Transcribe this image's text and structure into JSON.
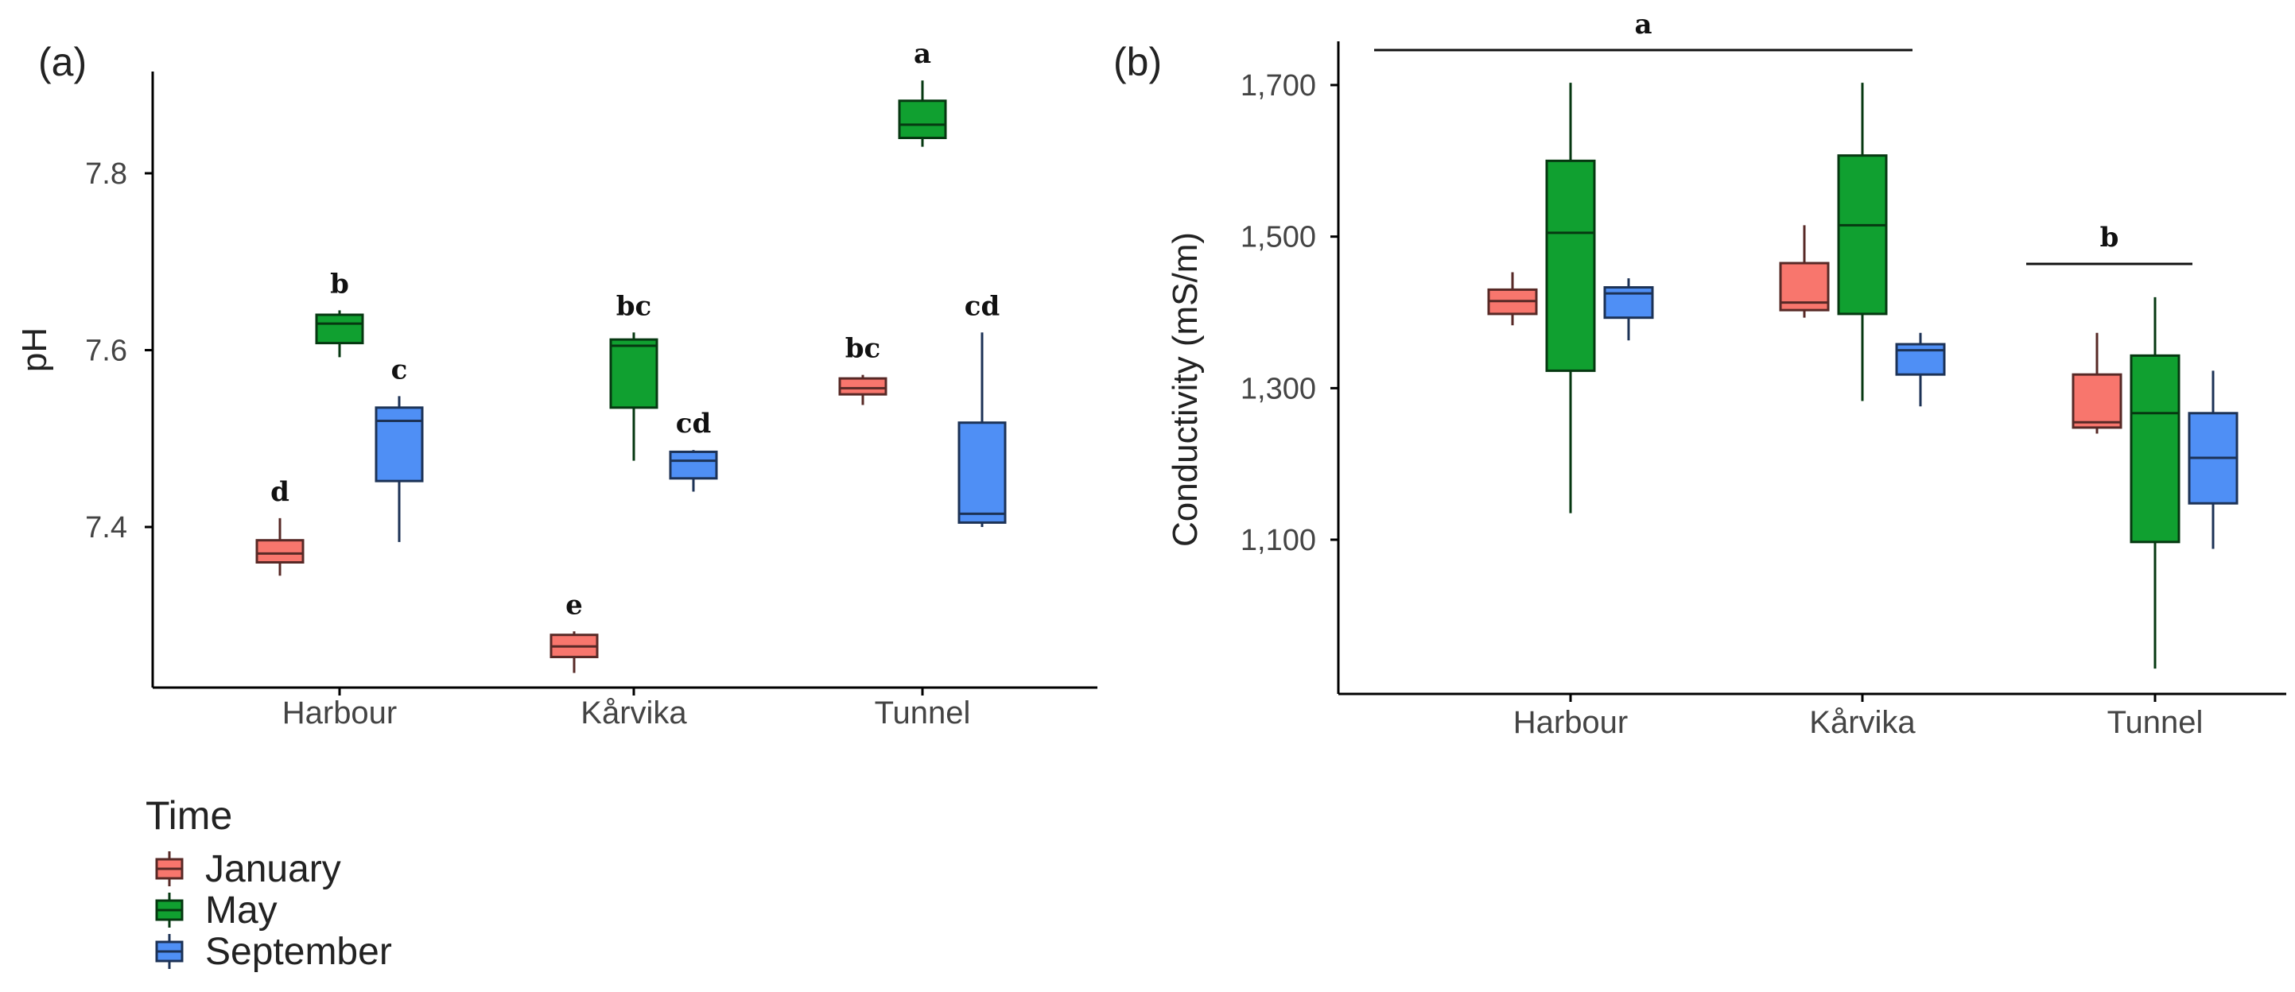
{
  "colors": {
    "January": "#f8766d",
    "May": "#10a030",
    "September": "#4f8ff5",
    "axis": "#000000"
  },
  "legend": {
    "title": "Time",
    "items": [
      "January",
      "May",
      "September"
    ]
  },
  "chart_data": [
    {
      "type": "boxplot",
      "panel_label": "(a)",
      "title": "",
      "xlabel": "",
      "ylabel": "pH",
      "categories": [
        "Harbour",
        "Kårvika",
        "Tunnel"
      ],
      "ylim": [
        7.2,
        7.95
      ],
      "yticks": [
        7.4,
        7.6,
        7.8
      ],
      "ytick_labels": [
        "7.4",
        "7.6",
        "7.8"
      ],
      "grid": false,
      "series": [
        {
          "name": "January",
          "boxes": [
            {
              "category": "Harbour",
              "min": 7.345,
              "q1": 7.36,
              "median": 7.37,
              "q3": 7.385,
              "max": 7.41,
              "letter": "d"
            },
            {
              "category": "Kårvika",
              "min": 7.235,
              "q1": 7.253,
              "median": 7.265,
              "q3": 7.278,
              "max": 7.282,
              "letter": "e"
            },
            {
              "category": "Tunnel",
              "min": 7.538,
              "q1": 7.55,
              "median": 7.557,
              "q3": 7.568,
              "max": 7.572,
              "letter": "bc"
            }
          ]
        },
        {
          "name": "May",
          "boxes": [
            {
              "category": "Harbour",
              "min": 7.592,
              "q1": 7.608,
              "median": 7.63,
              "q3": 7.64,
              "max": 7.645,
              "letter": "b"
            },
            {
              "category": "Kårvika",
              "min": 7.475,
              "q1": 7.535,
              "median": 7.605,
              "q3": 7.612,
              "max": 7.62,
              "letter": "bc"
            },
            {
              "category": "Tunnel",
              "min": 7.83,
              "q1": 7.84,
              "median": 7.855,
              "q3": 7.882,
              "max": 7.905,
              "letter": "a"
            }
          ]
        },
        {
          "name": "September",
          "boxes": [
            {
              "category": "Harbour",
              "min": 7.383,
              "q1": 7.452,
              "median": 7.52,
              "q3": 7.535,
              "max": 7.548,
              "letter": "c"
            },
            {
              "category": "Kårvika",
              "min": 7.44,
              "q1": 7.455,
              "median": 7.475,
              "q3": 7.485,
              "max": 7.487,
              "letter": "cd"
            },
            {
              "category": "Tunnel",
              "min": 7.4,
              "q1": 7.405,
              "median": 7.415,
              "q3": 7.518,
              "max": 7.62,
              "letter": "cd"
            }
          ]
        }
      ]
    },
    {
      "type": "boxplot",
      "panel_label": "(b)",
      "title": "",
      "xlabel": "",
      "ylabel": "Conductivity (mS/m)",
      "categories": [
        "Harbour",
        "Kårvika",
        "Tunnel"
      ],
      "ylim": [
        900,
        1720
      ],
      "yticks": [
        1100,
        1300,
        1500,
        1700
      ],
      "ytick_labels": [
        "1,100",
        "1,300",
        "1,500",
        "1,700"
      ],
      "grid": false,
      "series": [
        {
          "name": "January",
          "boxes": [
            {
              "category": "Harbour",
              "min": 1383,
              "q1": 1398,
              "median": 1415,
              "q3": 1430,
              "max": 1453
            },
            {
              "category": "Kårvika",
              "min": 1393,
              "q1": 1403,
              "median": 1413,
              "q3": 1465,
              "max": 1515
            },
            {
              "category": "Tunnel",
              "min": 1240,
              "q1": 1248,
              "median": 1255,
              "q3": 1318,
              "max": 1373
            }
          ]
        },
        {
          "name": "May",
          "boxes": [
            {
              "category": "Harbour",
              "min": 1135,
              "q1": 1323,
              "median": 1505,
              "q3": 1600,
              "max": 1703
            },
            {
              "category": "Kårvika",
              "min": 1283,
              "q1": 1398,
              "median": 1515,
              "q3": 1607,
              "max": 1703
            },
            {
              "category": "Tunnel",
              "min": 930,
              "q1": 1097,
              "median": 1267,
              "q3": 1343,
              "max": 1420
            }
          ]
        },
        {
          "name": "September",
          "boxes": [
            {
              "category": "Harbour",
              "min": 1363,
              "q1": 1393,
              "median": 1425,
              "q3": 1433,
              "max": 1445
            },
            {
              "category": "Kårvika",
              "min": 1276,
              "q1": 1318,
              "median": 1350,
              "q3": 1358,
              "max": 1373
            },
            {
              "category": "Tunnel",
              "min": 1088,
              "q1": 1148,
              "median": 1208,
              "q3": 1267,
              "max": 1323
            }
          ]
        }
      ],
      "group_annotations": [
        {
          "letter": "a",
          "categories": [
            "Harbour",
            "Kårvika"
          ]
        },
        {
          "letter": "b",
          "categories": [
            "Tunnel"
          ]
        }
      ]
    }
  ]
}
